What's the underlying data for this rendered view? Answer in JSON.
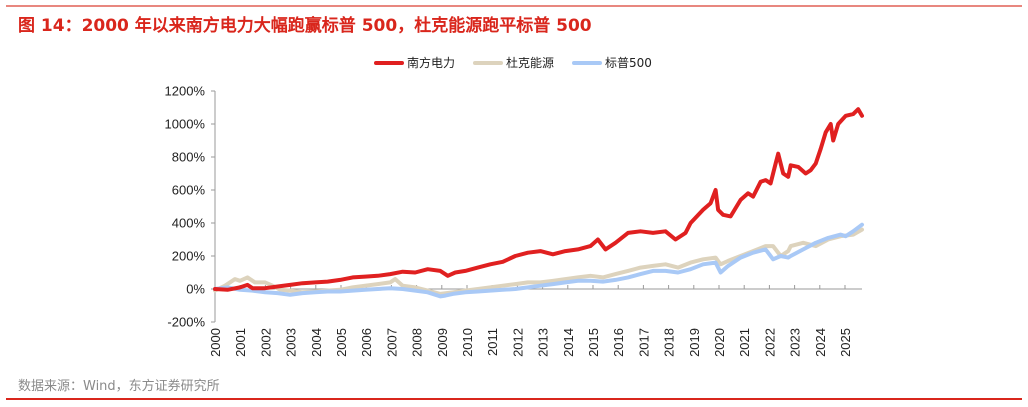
{
  "title": "图 14：2000 年以来南方电力大幅跑赢标普 500，杜克能源跑平标普 500",
  "source": "数据来源：Wind，东方证券研究所",
  "legend": [
    {
      "label": "南方电力",
      "color": "#e02020"
    },
    {
      "label": "杜克能源",
      "color": "#ddd3bd"
    },
    {
      "label": "标普500",
      "color": "#a9c9f6"
    }
  ],
  "chart_data": {
    "type": "line",
    "title": "2000 年以来南方电力大幅跑赢标普 500，杜克能源跑平标普 500",
    "xlabel": "",
    "ylabel": "",
    "ylim": [
      -200,
      1200
    ],
    "yticks": [
      -200,
      0,
      200,
      400,
      600,
      800,
      1000,
      1200
    ],
    "ytick_labels": [
      "-200%",
      "0%",
      "200%",
      "400%",
      "600%",
      "800%",
      "1000%",
      "1200%"
    ],
    "xticks": [
      2000,
      2001,
      2002,
      2003,
      2004,
      2005,
      2006,
      2007,
      2008,
      2009,
      2010,
      2011,
      2012,
      2013,
      2014,
      2015,
      2016,
      2017,
      2018,
      2019,
      2020,
      2021,
      2022,
      2023,
      2024,
      2025
    ],
    "xlim": [
      2000,
      2025.85
    ],
    "grid": false,
    "legend_position": "top",
    "series": [
      {
        "name": "南方电力",
        "color": "#e02020",
        "x": [
          2000,
          2000.5,
          2001,
          2001.3,
          2001.5,
          2002,
          2002.5,
          2003,
          2003.5,
          2004,
          2004.5,
          2005,
          2005.5,
          2006,
          2006.5,
          2007,
          2007.5,
          2008,
          2008.5,
          2009,
          2009.3,
          2009.6,
          2010,
          2010.5,
          2011,
          2011.5,
          2012,
          2012.5,
          2013,
          2013.5,
          2014,
          2014.5,
          2015,
          2015.3,
          2015.6,
          2016,
          2016.5,
          2017,
          2017.5,
          2018,
          2018.4,
          2018.8,
          2019,
          2019.5,
          2019.8,
          2020,
          2020.1,
          2020.3,
          2020.6,
          2021,
          2021.3,
          2021.5,
          2021.8,
          2022,
          2022.2,
          2022.4,
          2022.5,
          2022.7,
          2022.9,
          2023,
          2023.3,
          2023.6,
          2023.8,
          2024,
          2024.2,
          2024.4,
          2024.6,
          2024.7,
          2024.9,
          2025.2,
          2025.5,
          2025.7,
          2025.85
        ],
        "values": [
          0,
          -5,
          10,
          25,
          5,
          5,
          15,
          25,
          35,
          40,
          45,
          55,
          70,
          75,
          80,
          90,
          105,
          100,
          120,
          110,
          80,
          100,
          110,
          130,
          150,
          165,
          200,
          220,
          230,
          210,
          230,
          240,
          260,
          300,
          240,
          280,
          340,
          350,
          340,
          350,
          300,
          340,
          400,
          480,
          520,
          600,
          480,
          450,
          440,
          540,
          580,
          560,
          650,
          660,
          640,
          760,
          820,
          700,
          680,
          750,
          740,
          700,
          720,
          760,
          850,
          950,
          1000,
          900,
          1000,
          1050,
          1060,
          1090,
          1050
        ]
      },
      {
        "name": "杜克能源",
        "color": "#ddd3bd",
        "x": [
          2000,
          2000.4,
          2000.8,
          2001,
          2001.3,
          2001.6,
          2002,
          2002.3,
          2002.6,
          2003,
          2003.5,
          2004,
          2004.5,
          2005,
          2005.5,
          2006,
          2006.5,
          2007,
          2007.2,
          2007.5,
          2008,
          2008.5,
          2009,
          2009.5,
          2010,
          2010.5,
          2011,
          2011.5,
          2012,
          2012.5,
          2013,
          2013.5,
          2014,
          2014.5,
          2015,
          2015.5,
          2016,
          2016.5,
          2017,
          2017.5,
          2018,
          2018.5,
          2019,
          2019.5,
          2020,
          2020.2,
          2020.5,
          2021,
          2021.5,
          2022,
          2022.3,
          2022.6,
          2022.9,
          2023,
          2023.5,
          2024,
          2024.5,
          2025,
          2025.5,
          2025.85
        ],
        "values": [
          -10,
          20,
          60,
          50,
          70,
          40,
          40,
          20,
          -5,
          -10,
          -20,
          -15,
          -10,
          -5,
          10,
          20,
          30,
          40,
          60,
          20,
          10,
          -10,
          -30,
          -20,
          -10,
          0,
          10,
          20,
          30,
          40,
          40,
          50,
          60,
          70,
          80,
          70,
          90,
          110,
          130,
          140,
          150,
          130,
          160,
          180,
          190,
          150,
          170,
          200,
          230,
          260,
          260,
          200,
          230,
          260,
          280,
          260,
          300,
          320,
          330,
          360
        ]
      },
      {
        "name": "标普500",
        "color": "#a9c9f6",
        "x": [
          2000,
          2000.5,
          2001,
          2001.5,
          2002,
          2002.5,
          2003,
          2003.5,
          2004,
          2004.5,
          2005,
          2005.5,
          2006,
          2006.5,
          2007,
          2007.5,
          2008,
          2008.5,
          2009,
          2009.2,
          2009.5,
          2010,
          2010.5,
          2011,
          2011.5,
          2012,
          2012.5,
          2013,
          2013.5,
          2014,
          2014.5,
          2015,
          2015.5,
          2016,
          2016.5,
          2017,
          2017.5,
          2018,
          2018.5,
          2019,
          2019.5,
          2020,
          2020.2,
          2020.5,
          2021,
          2021.5,
          2022,
          2022.3,
          2022.6,
          2022.9,
          2023,
          2023.5,
          2024,
          2024.5,
          2025,
          2025.2,
          2025.5,
          2025.85
        ],
        "values": [
          0,
          10,
          -5,
          -10,
          -20,
          -25,
          -35,
          -25,
          -20,
          -15,
          -15,
          -10,
          -5,
          0,
          5,
          0,
          -10,
          -20,
          -45,
          -40,
          -30,
          -20,
          -15,
          -10,
          -5,
          0,
          10,
          20,
          30,
          40,
          50,
          50,
          45,
          55,
          70,
          90,
          110,
          110,
          100,
          120,
          150,
          160,
          100,
          140,
          190,
          220,
          240,
          180,
          200,
          190,
          200,
          240,
          280,
          310,
          330,
          320,
          350,
          390
        ]
      }
    ]
  }
}
